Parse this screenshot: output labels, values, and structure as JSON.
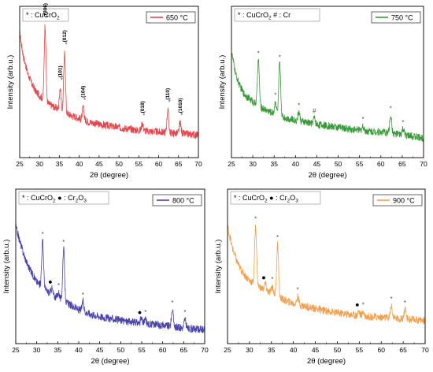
{
  "chart_data": [
    {
      "type": "line",
      "id": "p650",
      "xlabel": "2θ (degree)",
      "ylabel": "Intensity (arb.u.)",
      "xlim": [
        25,
        70
      ],
      "xticks": [
        25,
        30,
        35,
        40,
        45,
        50,
        55,
        60,
        65,
        70
      ],
      "color": "#e0474c",
      "series": [
        {
          "name": "650 °C"
        }
      ],
      "baseline": [
        [
          25,
          0.82
        ],
        [
          26,
          0.66
        ],
        [
          27,
          0.56
        ],
        [
          28,
          0.49
        ],
        [
          29,
          0.44
        ],
        [
          30,
          0.41
        ],
        [
          32,
          0.36
        ],
        [
          34,
          0.33
        ],
        [
          36,
          0.3
        ],
        [
          38,
          0.28
        ],
        [
          40,
          0.26
        ],
        [
          42,
          0.24
        ],
        [
          45,
          0.22
        ],
        [
          50,
          0.2
        ],
        [
          55,
          0.18
        ],
        [
          60,
          0.17
        ],
        [
          65,
          0.16
        ],
        [
          70,
          0.15
        ]
      ],
      "noise": 0.025,
      "peaks": [
        {
          "x": 31.4,
          "height": 0.5,
          "label": "(006)"
        },
        {
          "x": 35.2,
          "height": 0.15,
          "label": "(101)"
        },
        {
          "x": 36.3,
          "height": 0.4,
          "label": "(012)"
        },
        {
          "x": 41.0,
          "height": 0.08,
          "label": "(104)"
        },
        {
          "x": 55.9,
          "height": 0.05,
          "label": "(018)"
        },
        {
          "x": 62.3,
          "height": 0.15,
          "label": "(110)"
        },
        {
          "x": 65.4,
          "height": 0.07,
          "label": "(1010)"
        }
      ],
      "legend": {
        "star": "* ",
        "star_text": ": CuCrO",
        "star_sub": "2"
      }
    },
    {
      "type": "line",
      "id": "p750",
      "xlabel": "2θ (degree)",
      "ylabel": "Intensity (arb.u.)",
      "xlim": [
        25,
        70
      ],
      "xticks": [
        25,
        30,
        35,
        40,
        45,
        50,
        55,
        60,
        65,
        70
      ],
      "color": "#3a9a3a",
      "series": [
        {
          "name": "750 °C"
        }
      ],
      "baseline": [
        [
          25,
          0.7
        ],
        [
          26,
          0.55
        ],
        [
          27,
          0.47
        ],
        [
          28,
          0.42
        ],
        [
          30,
          0.37
        ],
        [
          32,
          0.33
        ],
        [
          35,
          0.29
        ],
        [
          38,
          0.26
        ],
        [
          41,
          0.24
        ],
        [
          45,
          0.22
        ],
        [
          50,
          0.2
        ],
        [
          55,
          0.18
        ],
        [
          60,
          0.17
        ],
        [
          65,
          0.15
        ],
        [
          70,
          0.13
        ]
      ],
      "noise": 0.025,
      "peaks": [
        {
          "x": 31.3,
          "height": 0.3,
          "marker": "star"
        },
        {
          "x": 35.3,
          "height": 0.08,
          "marker": "star"
        },
        {
          "x": 36.3,
          "height": 0.34,
          "marker": "star"
        },
        {
          "x": 40.8,
          "height": 0.06,
          "marker": "star"
        },
        {
          "x": 44.4,
          "height": 0.04,
          "marker": "hash"
        },
        {
          "x": 55.8,
          "height": 0.03,
          "marker": "star"
        },
        {
          "x": 62.3,
          "height": 0.12,
          "marker": "star"
        },
        {
          "x": 65.2,
          "height": 0.04,
          "marker": "star"
        }
      ],
      "legend": {
        "star": "* ",
        "star_text": ": CuCrO",
        "star_sub": "2",
        "hash": "# ",
        "hash_text": ": Cr"
      }
    },
    {
      "type": "line",
      "id": "p800",
      "xlabel": "2θ (degree)",
      "ylabel": "Intensity (arb.u.)",
      "xlim": [
        25,
        70
      ],
      "xticks": [
        25,
        30,
        35,
        40,
        45,
        50,
        55,
        60,
        65,
        70
      ],
      "color": "#4a44a8",
      "series": [
        {
          "name": "800 °C"
        }
      ],
      "baseline": [
        [
          25,
          0.76
        ],
        [
          26,
          0.66
        ],
        [
          27,
          0.57
        ],
        [
          28,
          0.5
        ],
        [
          29,
          0.45
        ],
        [
          30,
          0.4
        ],
        [
          32,
          0.35
        ],
        [
          34,
          0.31
        ],
        [
          36,
          0.28
        ],
        [
          38,
          0.25
        ],
        [
          40,
          0.22
        ],
        [
          43,
          0.19
        ],
        [
          46,
          0.17
        ],
        [
          50,
          0.15
        ],
        [
          55,
          0.13
        ],
        [
          60,
          0.12
        ],
        [
          65,
          0.1
        ],
        [
          70,
          0.09
        ]
      ],
      "noise": 0.025,
      "peaks": [
        {
          "x": 31.4,
          "height": 0.3,
          "marker": "star"
        },
        {
          "x": 33.6,
          "height": 0.04,
          "marker": "dot"
        },
        {
          "x": 35.2,
          "height": 0.04,
          "marker": "star"
        },
        {
          "x": 36.4,
          "height": 0.34,
          "marker": "star"
        },
        {
          "x": 41.0,
          "height": 0.06,
          "marker": "star"
        },
        {
          "x": 54.9,
          "height": 0.03,
          "marker": "dot"
        },
        {
          "x": 55.9,
          "height": 0.03,
          "marker": "star"
        },
        {
          "x": 62.3,
          "height": 0.11,
          "marker": "star"
        },
        {
          "x": 65.3,
          "height": 0.06,
          "marker": "star"
        }
      ],
      "legend": {
        "star": "* ",
        "star_text": ": CuCrO",
        "star_sub": "2",
        "dot": "● ",
        "dot_text": ": Cr",
        "dot_sub": "2",
        "dot_tail": "O",
        "dot_sub2": "3"
      }
    },
    {
      "type": "line",
      "id": "p900",
      "xlabel": "2θ (degree)",
      "ylabel": "Intensity (arb.u.)",
      "xlim": [
        25,
        70
      ],
      "xticks": [
        25,
        30,
        35,
        40,
        45,
        50,
        55,
        60,
        65,
        70
      ],
      "color": "#f0a050",
      "series": [
        {
          "name": "900 °C"
        }
      ],
      "baseline": [
        [
          25,
          0.76
        ],
        [
          26,
          0.63
        ],
        [
          27,
          0.54
        ],
        [
          28,
          0.48
        ],
        [
          29,
          0.44
        ],
        [
          30,
          0.41
        ],
        [
          32,
          0.37
        ],
        [
          34,
          0.34
        ],
        [
          36,
          0.31
        ],
        [
          38,
          0.28
        ],
        [
          40,
          0.26
        ],
        [
          43,
          0.24
        ],
        [
          46,
          0.22
        ],
        [
          50,
          0.2
        ],
        [
          55,
          0.18
        ],
        [
          60,
          0.17
        ],
        [
          65,
          0.16
        ],
        [
          70,
          0.15
        ]
      ],
      "noise": 0.025,
      "peaks": [
        {
          "x": 31.4,
          "height": 0.38,
          "marker": "star"
        },
        {
          "x": 33.6,
          "height": 0.04,
          "marker": "dot"
        },
        {
          "x": 35.2,
          "height": 0.05,
          "marker": "star"
        },
        {
          "x": 36.4,
          "height": 0.34,
          "marker": "star"
        },
        {
          "x": 41.0,
          "height": 0.05,
          "marker": "star"
        },
        {
          "x": 54.9,
          "height": 0.03,
          "marker": "dot"
        },
        {
          "x": 55.9,
          "height": 0.03,
          "marker": "star"
        },
        {
          "x": 62.3,
          "height": 0.08,
          "marker": "star"
        },
        {
          "x": 65.4,
          "height": 0.06,
          "marker": "star"
        }
      ],
      "legend": {
        "star": "* ",
        "star_text": ": CuCrO",
        "star_sub": "2",
        "dot": "● ",
        "dot_text": ": Cr",
        "dot_sub": "2",
        "dot_tail": "O",
        "dot_sub2": "3"
      }
    }
  ]
}
